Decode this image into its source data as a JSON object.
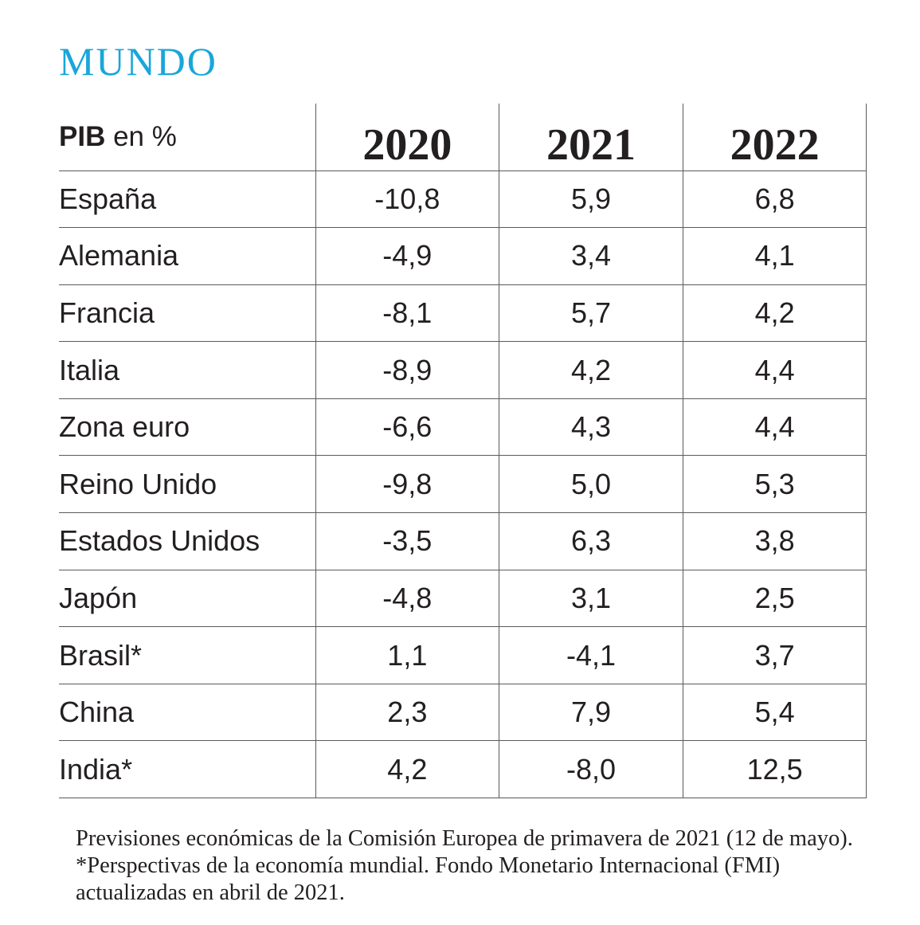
{
  "title": "MUNDO",
  "colors": {
    "title": "#1aa6d9",
    "text": "#231f20",
    "rule": "#5a5a5a"
  },
  "chart_data": {
    "type": "table",
    "title": "MUNDO",
    "header": {
      "label_bold": "PIB",
      "label_rest": " en %",
      "years": [
        "2020",
        "2021",
        "2022"
      ]
    },
    "rows": [
      {
        "country": "España",
        "values": [
          "-10,8",
          "5,9",
          "6,8"
        ]
      },
      {
        "country": "Alemania",
        "values": [
          "-4,9",
          "3,4",
          "4,1"
        ]
      },
      {
        "country": "Francia",
        "values": [
          "-8,1",
          "5,7",
          "4,2"
        ]
      },
      {
        "country": "Italia",
        "values": [
          "-8,9",
          "4,2",
          "4,4"
        ]
      },
      {
        "country": "Zona euro",
        "values": [
          "-6,6",
          "4,3",
          "4,4"
        ]
      },
      {
        "country": "Reino Unido",
        "values": [
          "-9,8",
          "5,0",
          "5,3"
        ]
      },
      {
        "country": "Estados Unidos",
        "values": [
          "-3,5",
          "6,3",
          "3,8"
        ]
      },
      {
        "country": "Japón",
        "values": [
          "-4,8",
          "3,1",
          "2,5"
        ]
      },
      {
        "country": "Brasil*",
        "values": [
          "1,1",
          "-4,1",
          "3,7"
        ]
      },
      {
        "country": "China",
        "values": [
          "2,3",
          "7,9",
          "5,4"
        ]
      },
      {
        "country": "India*",
        "values": [
          "4,2",
          "-8,0",
          "12,5"
        ]
      }
    ]
  },
  "footnote": "Previsiones económicas de la Comisión Europea de primavera de 2021 (12 de mayo). *Perspectivas de la economía mundial. Fondo Monetario Internacional (FMI) actualizadas en abril de 2021."
}
